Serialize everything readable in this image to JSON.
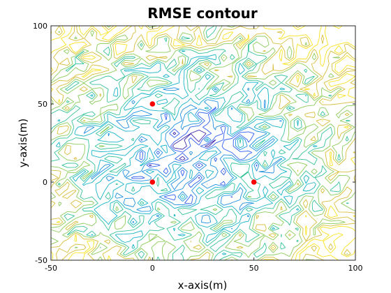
{
  "chart_data": {
    "type": "contour",
    "title": "RMSE contour",
    "xlabel": "x-axis(m)",
    "ylabel": "y-axis(m)",
    "xlim": [
      -50,
      100
    ],
    "ylim": [
      -50,
      100
    ],
    "x_ticks": [
      -50,
      0,
      50,
      100
    ],
    "y_ticks": [
      -50,
      0,
      50,
      100
    ],
    "x_tick_labels": [
      "-50",
      "0",
      "50",
      "100"
    ],
    "y_tick_labels": [
      "-50",
      "0",
      "50",
      "100"
    ],
    "grid": false,
    "colormap": "parula",
    "level_colors": [
      "#3e26a8",
      "#2f5df1",
      "#1f8fe0",
      "#15b3c9",
      "#34c29a",
      "#8ccc5a",
      "#d7bd3a",
      "#f9e21f"
    ],
    "markers": {
      "color": "#ff0000",
      "points": [
        {
          "x": 0,
          "y": 50
        },
        {
          "x": 0,
          "y": 0
        },
        {
          "x": 50,
          "y": 0
        }
      ]
    }
  }
}
